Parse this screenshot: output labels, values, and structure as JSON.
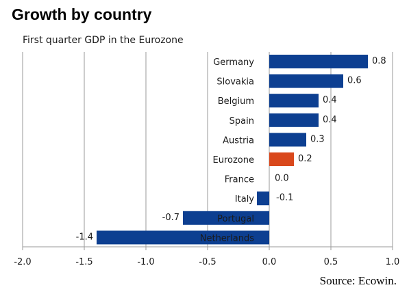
{
  "title": "Growth by country",
  "subtitle": "First quarter GDP in the Eurozone",
  "source": "Source: Ecowin.",
  "colors": {
    "bar": "#0d3f91",
    "highlight": "#d9481c",
    "grid": "#9a9a9a"
  },
  "chart_data": {
    "type": "bar",
    "orientation": "horizontal",
    "categories": [
      "Germany",
      "Slovakia",
      "Belgium",
      "Spain",
      "Austria",
      "Eurozone",
      "France",
      "Italy",
      "Portugal",
      "Netherlands"
    ],
    "values": [
      0.8,
      0.6,
      0.4,
      0.4,
      0.3,
      0.2,
      0.0,
      -0.1,
      -0.7,
      -1.4
    ],
    "value_labels": [
      "0.8",
      "0.6",
      "0.4",
      "0.4",
      "0.3",
      "0.2",
      "0.0",
      "-0.1",
      "-0.7",
      "-1.4"
    ],
    "highlight": "Eurozone",
    "xlim": [
      -2.0,
      1.0
    ],
    "xticks": [
      -2.0,
      -1.5,
      -1.0,
      -0.5,
      0.0,
      0.5,
      1.0
    ],
    "xtick_labels": [
      "-2.0",
      "-1.5",
      "-1.0",
      "-0.5",
      "0.0",
      "0.5",
      "1.0"
    ],
    "grid": true
  }
}
